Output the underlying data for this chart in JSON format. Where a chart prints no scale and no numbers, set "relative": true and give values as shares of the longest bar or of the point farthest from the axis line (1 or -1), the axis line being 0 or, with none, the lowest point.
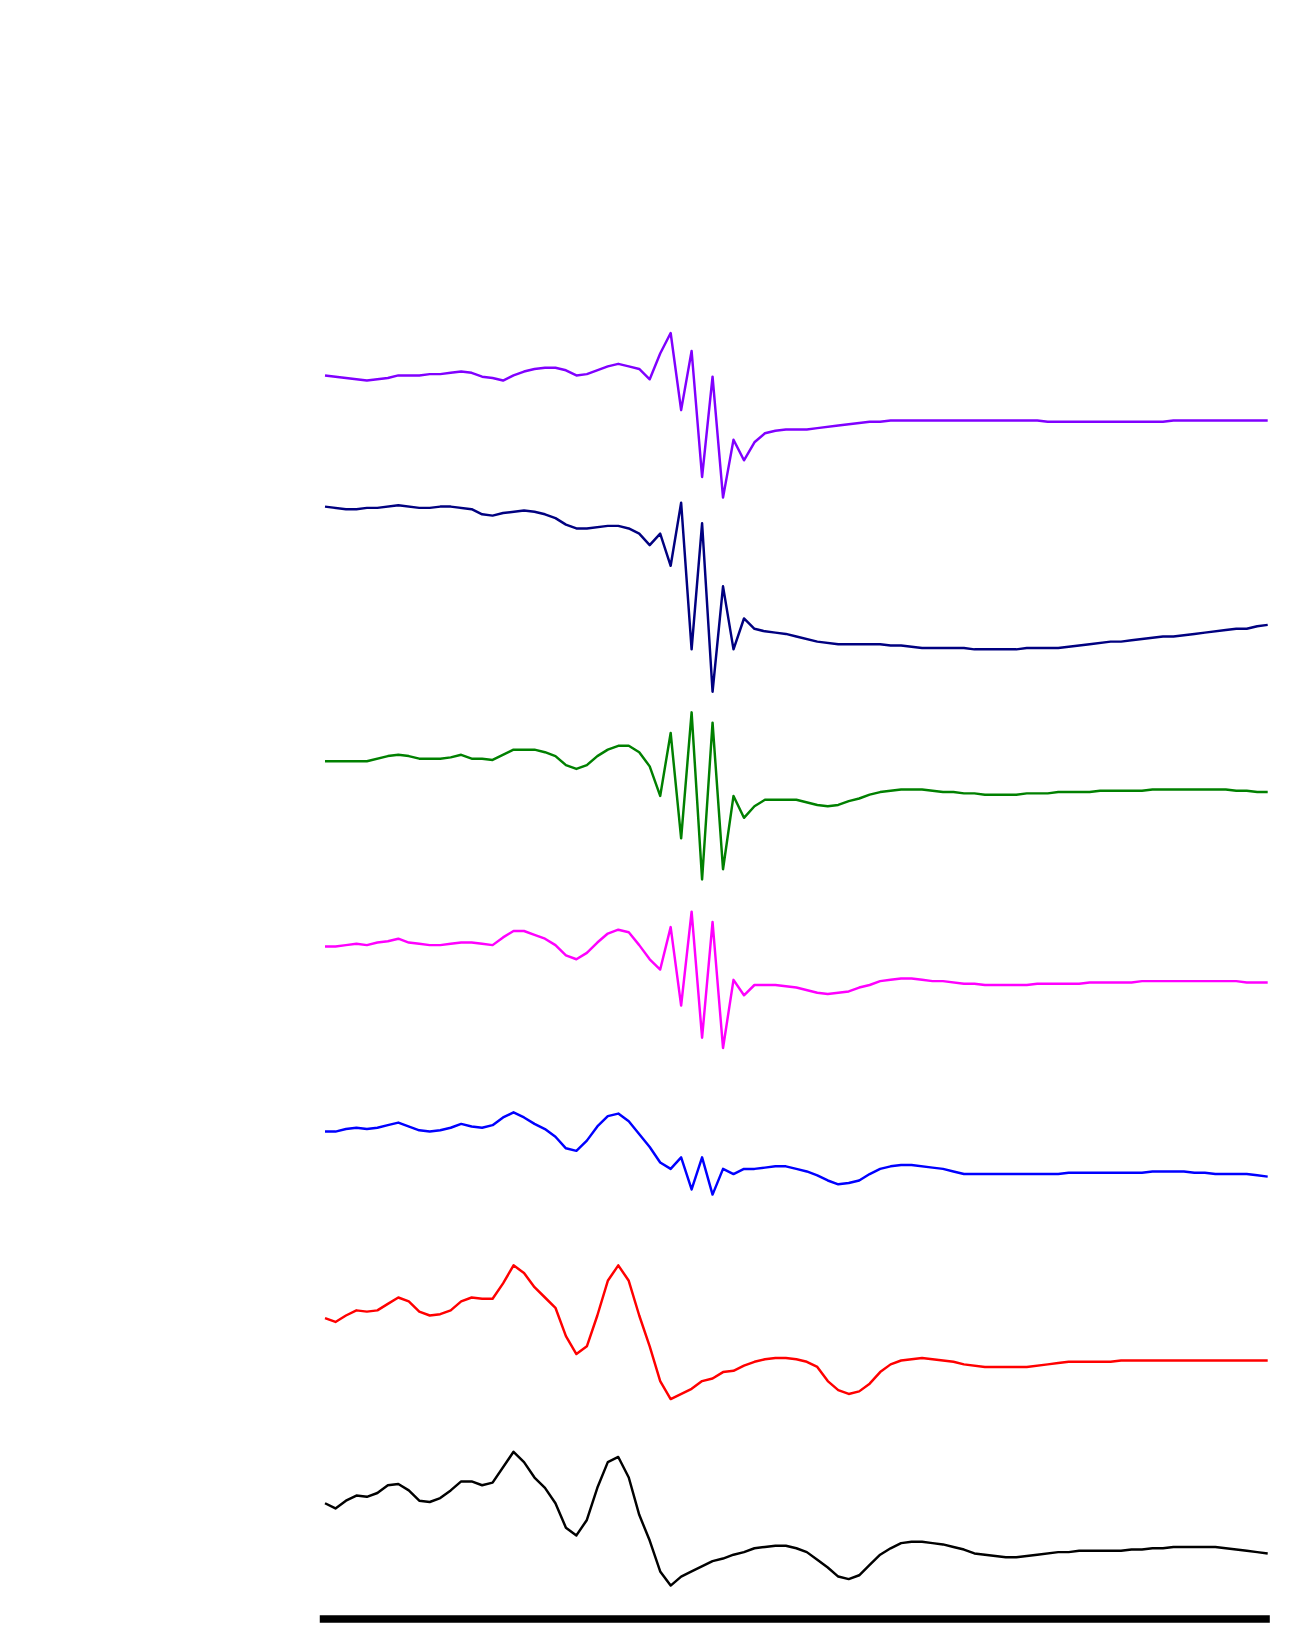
{
  "chart_data": {
    "type": "line",
    "relative": true,
    "categories": [
      null,
      null,
      null,
      null,
      null,
      null,
      null,
      null,
      null,
      null,
      null,
      null,
      null,
      null,
      null,
      null,
      null,
      null,
      null,
      null,
      null,
      null,
      null,
      null,
      null,
      null,
      null,
      null,
      null,
      null,
      null,
      null,
      null,
      null,
      null,
      null,
      null,
      null,
      null,
      null,
      null,
      null,
      null,
      null,
      null,
      null,
      null,
      null,
      null,
      null,
      null,
      null,
      null,
      null,
      null,
      null,
      null,
      null,
      null,
      null,
      null,
      null,
      null,
      null,
      null,
      null,
      null,
      null,
      null,
      null,
      null,
      null,
      null,
      null,
      null,
      null,
      null,
      null,
      null,
      null,
      null,
      null,
      null,
      null,
      null,
      null,
      null,
      null,
      null,
      null,
      null
    ],
    "series": [
      {
        "color": "#8000ff",
        "values": [
          0.967,
          0.966,
          0.965,
          0.964,
          0.963,
          0.964,
          0.965,
          0.967,
          0.967,
          0.967,
          0.968,
          0.968,
          0.969,
          0.97,
          0.969,
          0.966,
          0.965,
          0.963,
          0.967,
          0.97,
          0.972,
          0.973,
          0.973,
          0.971,
          0.967,
          0.968,
          0.971,
          0.974,
          0.976,
          0.974,
          0.972,
          0.964,
          0.984,
          1,
          0.94,
          0.986,
          0.888,
          0.966,
          0.872,
          0.917,
          0.901,
          0.915,
          0.922,
          0.924,
          0.925,
          0.925,
          0.925,
          0.926,
          0.927,
          0.928,
          0.929,
          0.93,
          0.931,
          0.931,
          0.932,
          0.932,
          0.932,
          0.932,
          0.932,
          0.932,
          0.932,
          0.932,
          0.932,
          0.932,
          0.932,
          0.932,
          0.932,
          0.932,
          0.932,
          0.931,
          0.931,
          0.931,
          0.931,
          0.931,
          0.931,
          0.931,
          0.931,
          0.931,
          0.931,
          0.931,
          0.931,
          0.932,
          0.932,
          0.932,
          0.932,
          0.932,
          0.932,
          0.932,
          0.932,
          0.932,
          0.932
        ]
      },
      {
        "color": "#000080",
        "values": [
          0.865,
          0.864,
          0.863,
          0.863,
          0.864,
          0.864,
          0.865,
          0.866,
          0.865,
          0.864,
          0.864,
          0.865,
          0.865,
          0.864,
          0.863,
          0.859,
          0.858,
          0.86,
          0.861,
          0.862,
          0.861,
          0.859,
          0.856,
          0.851,
          0.848,
          0.848,
          0.849,
          0.85,
          0.85,
          0.848,
          0.844,
          0.835,
          0.844,
          0.819,
          0.868,
          0.754,
          0.852,
          0.721,
          0.803,
          0.754,
          0.778,
          0.77,
          0.768,
          0.767,
          0.766,
          0.764,
          0.762,
          0.76,
          0.759,
          0.758,
          0.758,
          0.758,
          0.758,
          0.758,
          0.757,
          0.757,
          0.756,
          0.755,
          0.755,
          0.755,
          0.755,
          0.755,
          0.754,
          0.754,
          0.754,
          0.754,
          0.754,
          0.755,
          0.755,
          0.755,
          0.755,
          0.756,
          0.757,
          0.758,
          0.759,
          0.76,
          0.76,
          0.761,
          0.762,
          0.763,
          0.764,
          0.764,
          0.765,
          0.766,
          0.767,
          0.768,
          0.769,
          0.77,
          0.77,
          0.772,
          0.773
        ]
      },
      {
        "color": "#008000",
        "values": [
          0.667,
          0.667,
          0.667,
          0.667,
          0.667,
          0.669,
          0.671,
          0.672,
          0.671,
          0.669,
          0.669,
          0.669,
          0.67,
          0.672,
          0.669,
          0.669,
          0.668,
          0.672,
          0.676,
          0.676,
          0.676,
          0.674,
          0.671,
          0.664,
          0.661,
          0.664,
          0.671,
          0.676,
          0.679,
          0.679,
          0.674,
          0.663,
          0.64,
          0.689,
          0.607,
          0.705,
          0.575,
          0.697,
          0.583,
          0.64,
          0.623,
          0.632,
          0.637,
          0.637,
          0.637,
          0.637,
          0.635,
          0.633,
          0.632,
          0.633,
          0.636,
          0.638,
          0.641,
          0.643,
          0.644,
          0.645,
          0.645,
          0.645,
          0.644,
          0.643,
          0.643,
          0.642,
          0.642,
          0.641,
          0.641,
          0.641,
          0.641,
          0.642,
          0.642,
          0.642,
          0.643,
          0.643,
          0.643,
          0.643,
          0.644,
          0.644,
          0.644,
          0.644,
          0.644,
          0.645,
          0.645,
          0.645,
          0.645,
          0.645,
          0.645,
          0.645,
          0.645,
          0.644,
          0.644,
          0.643,
          0.643
        ]
      },
      {
        "color": "#ff00ff",
        "values": [
          0.523,
          0.523,
          0.524,
          0.525,
          0.524,
          0.526,
          0.527,
          0.529,
          0.526,
          0.525,
          0.524,
          0.524,
          0.525,
          0.526,
          0.526,
          0.525,
          0.524,
          0.53,
          0.535,
          0.535,
          0.532,
          0.529,
          0.524,
          0.516,
          0.513,
          0.518,
          0.526,
          0.533,
          0.536,
          0.534,
          0.524,
          0.513,
          0.505,
          0.538,
          0.477,
          0.55,
          0.452,
          0.542,
          0.444,
          0.497,
          0.485,
          0.493,
          0.493,
          0.493,
          0.492,
          0.491,
          0.489,
          0.487,
          0.486,
          0.487,
          0.488,
          0.491,
          0.493,
          0.496,
          0.497,
          0.498,
          0.498,
          0.497,
          0.496,
          0.496,
          0.495,
          0.494,
          0.494,
          0.493,
          0.493,
          0.493,
          0.493,
          0.493,
          0.494,
          0.494,
          0.494,
          0.494,
          0.494,
          0.495,
          0.495,
          0.495,
          0.495,
          0.495,
          0.496,
          0.496,
          0.496,
          0.496,
          0.496,
          0.496,
          0.496,
          0.496,
          0.496,
          0.496,
          0.495,
          0.495,
          0.495
        ]
      },
      {
        "color": "#0000ff",
        "values": [
          0.379,
          0.379,
          0.381,
          0.382,
          0.381,
          0.382,
          0.384,
          0.386,
          0.383,
          0.38,
          0.379,
          0.38,
          0.382,
          0.385,
          0.383,
          0.382,
          0.384,
          0.39,
          0.394,
          0.39,
          0.385,
          0.381,
          0.375,
          0.366,
          0.364,
          0.372,
          0.383,
          0.391,
          0.393,
          0.387,
          0.377,
          0.367,
          0.355,
          0.35,
          0.359,
          0.334,
          0.359,
          0.33,
          0.35,
          0.346,
          0.35,
          0.35,
          0.351,
          0.352,
          0.352,
          0.35,
          0.348,
          0.345,
          0.341,
          0.338,
          0.339,
          0.341,
          0.346,
          0.35,
          0.352,
          0.353,
          0.353,
          0.352,
          0.351,
          0.35,
          0.348,
          0.346,
          0.346,
          0.346,
          0.346,
          0.346,
          0.346,
          0.346,
          0.346,
          0.346,
          0.346,
          0.347,
          0.347,
          0.347,
          0.347,
          0.347,
          0.347,
          0.347,
          0.347,
          0.348,
          0.348,
          0.348,
          0.348,
          0.347,
          0.347,
          0.346,
          0.346,
          0.346,
          0.346,
          0.345,
          0.344
        ]
      },
      {
        "color": "#ff0000",
        "values": [
          0.234,
          0.231,
          0.236,
          0.24,
          0.239,
          0.24,
          0.245,
          0.25,
          0.247,
          0.239,
          0.236,
          0.237,
          0.24,
          0.247,
          0.25,
          0.249,
          0.249,
          0.261,
          0.275,
          0.269,
          0.258,
          0.25,
          0.242,
          0.22,
          0.206,
          0.212,
          0.236,
          0.263,
          0.275,
          0.263,
          0.236,
          0.212,
          0.185,
          0.171,
          0.175,
          0.179,
          0.185,
          0.187,
          0.192,
          0.193,
          0.197,
          0.2,
          0.202,
          0.203,
          0.203,
          0.202,
          0.2,
          0.196,
          0.185,
          0.178,
          0.175,
          0.177,
          0.183,
          0.192,
          0.198,
          0.201,
          0.202,
          0.203,
          0.202,
          0.201,
          0.2,
          0.198,
          0.197,
          0.196,
          0.196,
          0.196,
          0.196,
          0.196,
          0.197,
          0.198,
          0.199,
          0.2,
          0.2,
          0.2,
          0.2,
          0.2,
          0.201,
          0.201,
          0.201,
          0.201,
          0.201,
          0.201,
          0.201,
          0.201,
          0.201,
          0.201,
          0.201,
          0.201,
          0.201,
          0.201,
          0.201
        ]
      },
      {
        "color": "#000000",
        "values": [
          0.09,
          0.086,
          0.092,
          0.096,
          0.095,
          0.098,
          0.104,
          0.105,
          0.1,
          0.092,
          0.091,
          0.094,
          0.1,
          0.107,
          0.107,
          0.104,
          0.106,
          0.118,
          0.13,
          0.122,
          0.11,
          0.102,
          0.09,
          0.071,
          0.065,
          0.077,
          0.102,
          0.122,
          0.126,
          0.11,
          0.081,
          0.061,
          0.037,
          0.026,
          0.033,
          0.037,
          0.041,
          0.045,
          0.047,
          0.05,
          0.052,
          0.055,
          0.056,
          0.057,
          0.057,
          0.055,
          0.052,
          0.046,
          0.04,
          0.033,
          0.031,
          0.034,
          0.042,
          0.05,
          0.055,
          0.059,
          0.06,
          0.06,
          0.059,
          0.058,
          0.056,
          0.054,
          0.051,
          0.05,
          0.049,
          0.048,
          0.048,
          0.049,
          0.05,
          0.051,
          0.052,
          0.052,
          0.053,
          0.053,
          0.053,
          0.053,
          0.053,
          0.054,
          0.054,
          0.055,
          0.055,
          0.056,
          0.056,
          0.056,
          0.056,
          0.056,
          0.055,
          0.054,
          0.053,
          0.052,
          0.051
        ]
      }
    ]
  }
}
